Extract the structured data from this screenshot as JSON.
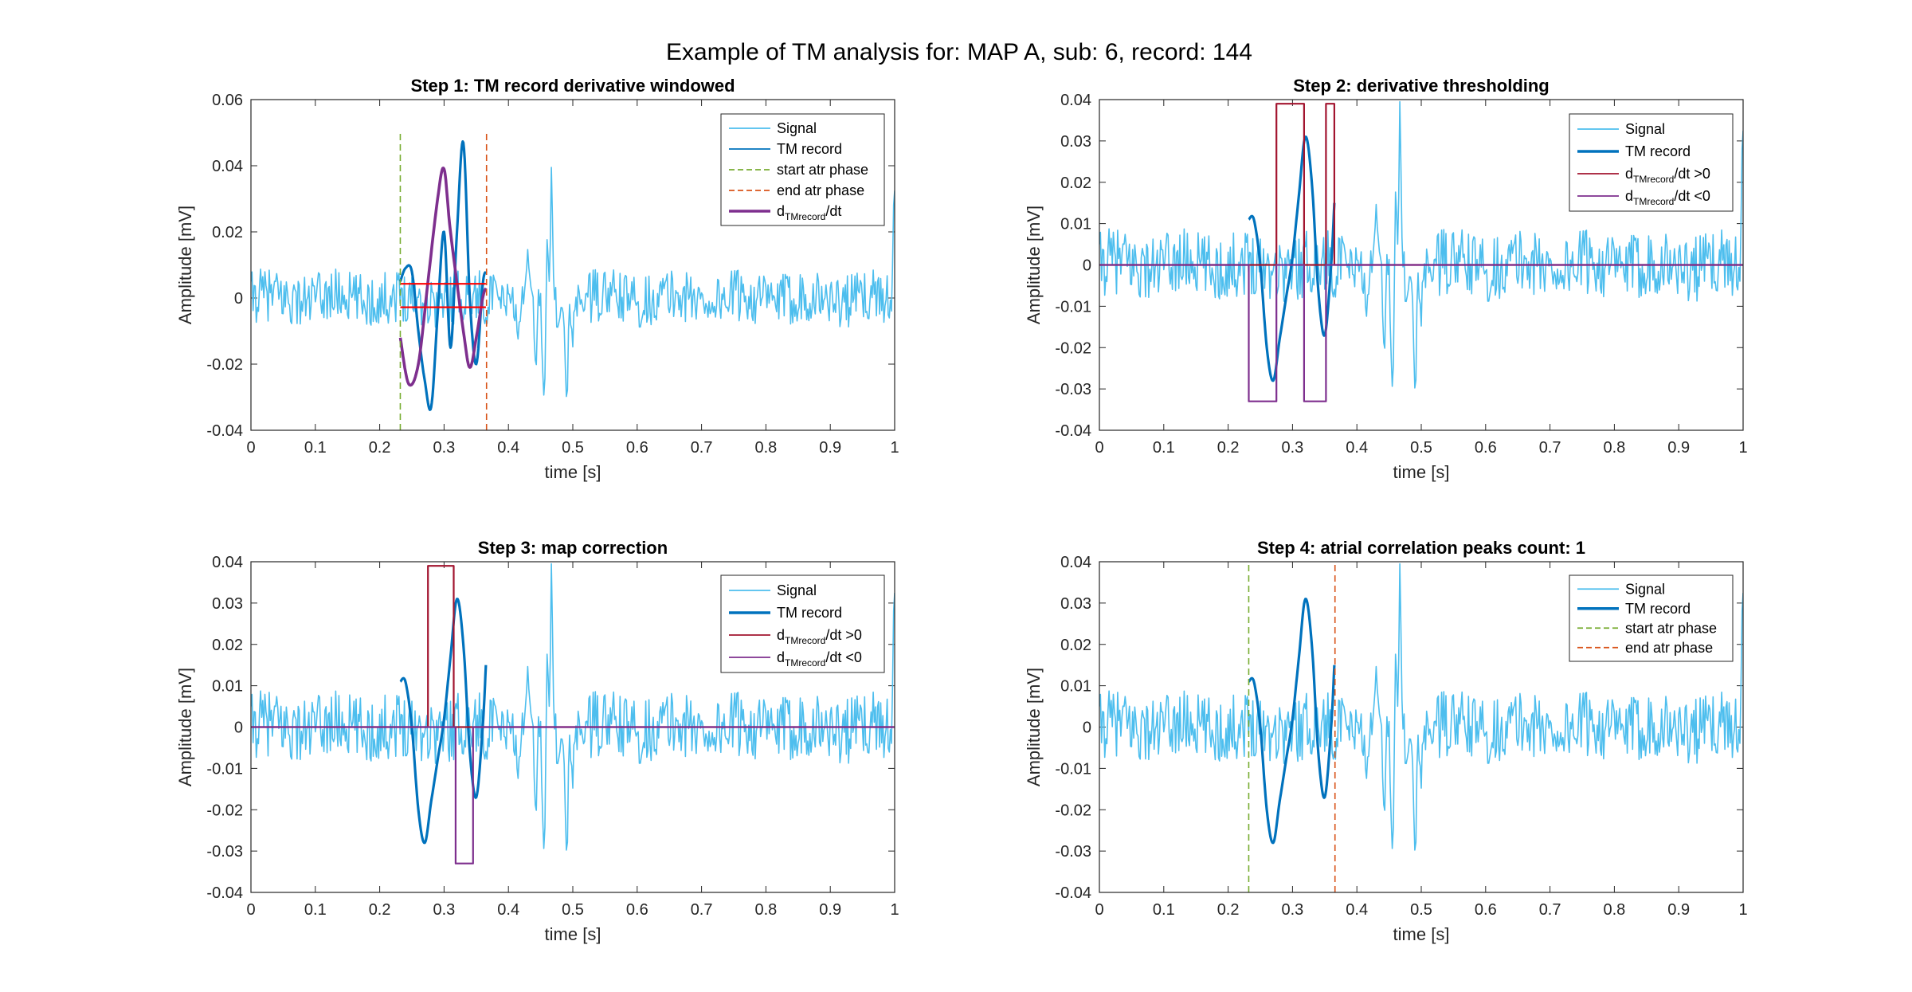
{
  "figure_title": "Example of TM analysis for: MAP A, sub: 6, record: 144",
  "colors": {
    "signal": "#4DBEEE",
    "tm": "#0072BD",
    "start": "#77AC30",
    "end": "#D95319",
    "deriv": "#7E2F8E",
    "pos": "#A2142F",
    "hline": "#FF0000",
    "axis": "#262626"
  },
  "chart_data": [
    {
      "id": "p1",
      "type": "line",
      "title": "Step 1: TM record derivative windowed",
      "xlabel": "time [s]",
      "ylabel": "Amplitude [mV]",
      "xlim": [
        0,
        1
      ],
      "ylim": [
        -0.04,
        0.06
      ],
      "xticks": [
        "0",
        "0.1",
        "0.2",
        "0.3",
        "0.4",
        "0.5",
        "0.6",
        "0.7",
        "0.8",
        "0.9",
        "1"
      ],
      "yticks": [
        "-0.04",
        "-0.02",
        "0",
        "0.02",
        "0.04",
        "0.06"
      ],
      "legend": [
        {
          "label": "Signal",
          "color": "signal",
          "style": "solid"
        },
        {
          "label": "TM record",
          "color": "tm",
          "style": "solid"
        },
        {
          "label": "start atr phase",
          "color": "start",
          "style": "dashed"
        },
        {
          "label": "end atr phase",
          "color": "end",
          "style": "dashed"
        },
        {
          "label": "d",
          "sub": "TMrecord",
          "suffix": "/dt",
          "color": "deriv",
          "style": "thick"
        }
      ],
      "series": [
        {
          "name": "Signal",
          "kind": "signal",
          "color": "signal"
        },
        {
          "name": "TM record",
          "kind": "tm",
          "color": "tm",
          "x": [
            0.232,
            0.24,
            0.25,
            0.26,
            0.27,
            0.28,
            0.29,
            0.3,
            0.31,
            0.32,
            0.33,
            0.34,
            0.35,
            0.36,
            0.365
          ],
          "y": [
            0.005,
            0.009,
            0.008,
            -0.01,
            -0.025,
            -0.033,
            -0.005,
            0.02,
            -0.015,
            0.02,
            0.047,
            0.0,
            -0.02,
            0.004,
            0.008
          ]
        },
        {
          "name": "d_TMrecord/dt",
          "kind": "line",
          "color": "deriv",
          "x": [
            0.232,
            0.245,
            0.26,
            0.275,
            0.29,
            0.3,
            0.31,
            0.33,
            0.34,
            0.35,
            0.36,
            0.365
          ],
          "y": [
            -0.012,
            -0.026,
            -0.02,
            0.005,
            0.03,
            0.039,
            0.02,
            -0.01,
            -0.021,
            -0.012,
            0.0,
            0.003
          ]
        },
        {
          "name": "upper threshold",
          "kind": "line",
          "color": "hline",
          "x": [
            0.232,
            0.365
          ],
          "y": [
            0.0043,
            0.0043
          ]
        },
        {
          "name": "lower threshold",
          "kind": "line",
          "color": "hline",
          "x": [
            0.232,
            0.365
          ],
          "y": [
            -0.0028,
            -0.0028
          ]
        },
        {
          "name": "start atr phase",
          "kind": "dashed",
          "color": "start",
          "x": [
            0.232,
            0.232
          ],
          "y": [
            -0.04,
            0.05
          ]
        },
        {
          "name": "end atr phase",
          "kind": "dashed",
          "color": "end",
          "x": [
            0.366,
            0.366
          ],
          "y": [
            -0.04,
            0.05
          ]
        }
      ]
    },
    {
      "id": "p2",
      "type": "line",
      "title": "Step 2: derivative thresholding",
      "xlabel": "time [s]",
      "ylabel": "Amplitude [mV]",
      "xlim": [
        0,
        1
      ],
      "ylim": [
        -0.04,
        0.04
      ],
      "xticks": [
        "0",
        "0.1",
        "0.2",
        "0.3",
        "0.4",
        "0.5",
        "0.6",
        "0.7",
        "0.8",
        "0.9",
        "1"
      ],
      "yticks": [
        "-0.04",
        "-0.03",
        "-0.02",
        "-0.01",
        "0",
        "0.01",
        "0.02",
        "0.03",
        "0.04"
      ],
      "legend": [
        {
          "label": "Signal",
          "color": "signal",
          "style": "solid"
        },
        {
          "label": "TM record",
          "color": "tm",
          "style": "thick"
        },
        {
          "label": "d",
          "sub": "TMrecord",
          "suffix": "/dt >0",
          "color": "pos",
          "style": "solid"
        },
        {
          "label": "d",
          "sub": "TMrecord",
          "suffix": "/dt <0",
          "color": "deriv",
          "style": "solid"
        }
      ],
      "series": [
        {
          "name": "Signal",
          "kind": "signal",
          "color": "signal"
        },
        {
          "name": "TM record",
          "kind": "tm",
          "color": "tm",
          "x": [
            0.232,
            0.24,
            0.25,
            0.26,
            0.27,
            0.28,
            0.29,
            0.3,
            0.31,
            0.32,
            0.33,
            0.34,
            0.35,
            0.36,
            0.365
          ],
          "y": [
            0.011,
            0.011,
            0.0,
            -0.02,
            -0.028,
            -0.018,
            -0.008,
            0.002,
            0.017,
            0.031,
            0.02,
            -0.006,
            -0.017,
            0.0,
            0.015
          ]
        },
        {
          "name": "d_TMrecord/dt >0",
          "kind": "line",
          "color": "pos",
          "x": [
            0,
            0.275,
            0.275,
            0.318,
            0.318,
            0.352,
            0.352,
            0.365,
            0.365,
            1
          ],
          "y": [
            0,
            0,
            0.039,
            0.039,
            0,
            0,
            0.039,
            0.039,
            0,
            0
          ]
        },
        {
          "name": "d_TMrecord/dt <0",
          "kind": "line",
          "color": "deriv",
          "x": [
            0,
            0.232,
            0.232,
            0.275,
            0.275,
            0.318,
            0.318,
            0.352,
            0.352,
            1
          ],
          "y": [
            0,
            0,
            -0.033,
            -0.033,
            0,
            0,
            -0.033,
            -0.033,
            0,
            0
          ]
        }
      ]
    },
    {
      "id": "p3",
      "type": "line",
      "title": "Step 3: map correction",
      "xlabel": "time [s]",
      "ylabel": "Amplitude [mV]",
      "xlim": [
        0,
        1
      ],
      "ylim": [
        -0.04,
        0.04
      ],
      "xticks": [
        "0",
        "0.1",
        "0.2",
        "0.3",
        "0.4",
        "0.5",
        "0.6",
        "0.7",
        "0.8",
        "0.9",
        "1"
      ],
      "yticks": [
        "-0.04",
        "-0.03",
        "-0.02",
        "-0.01",
        "0",
        "0.01",
        "0.02",
        "0.03",
        "0.04"
      ],
      "legend": [
        {
          "label": "Signal",
          "color": "signal",
          "style": "solid"
        },
        {
          "label": "TM record",
          "color": "tm",
          "style": "thick"
        },
        {
          "label": "d",
          "sub": "TMrecord",
          "suffix": "/dt >0",
          "color": "pos",
          "style": "solid"
        },
        {
          "label": "d",
          "sub": "TMrecord",
          "suffix": "/dt <0",
          "color": "deriv",
          "style": "solid"
        }
      ],
      "series": [
        {
          "name": "Signal",
          "kind": "signal",
          "color": "signal"
        },
        {
          "name": "TM record",
          "kind": "tm",
          "color": "tm",
          "x": [
            0.232,
            0.24,
            0.25,
            0.26,
            0.27,
            0.28,
            0.29,
            0.3,
            0.31,
            0.32,
            0.33,
            0.34,
            0.35,
            0.36,
            0.365
          ],
          "y": [
            0.011,
            0.011,
            0.0,
            -0.02,
            -0.028,
            -0.018,
            -0.008,
            0.002,
            0.017,
            0.031,
            0.02,
            -0.006,
            -0.017,
            0.0,
            0.015
          ]
        },
        {
          "name": "d_TMrecord/dt >0",
          "kind": "line",
          "color": "pos",
          "x": [
            0,
            0.275,
            0.275,
            0.315,
            0.315,
            1
          ],
          "y": [
            0,
            0,
            0.039,
            0.039,
            0,
            0
          ]
        },
        {
          "name": "d_TMrecord/dt <0",
          "kind": "line",
          "color": "deriv",
          "x": [
            0,
            0.318,
            0.318,
            0.345,
            0.345,
            1
          ],
          "y": [
            0,
            0,
            -0.033,
            -0.033,
            0,
            0
          ]
        }
      ]
    },
    {
      "id": "p4",
      "type": "line",
      "title": "Step 4: atrial correlation peaks count: 1",
      "xlabel": "time [s]",
      "ylabel": "Amplitude [mV]",
      "xlim": [
        0,
        1
      ],
      "ylim": [
        -0.04,
        0.04
      ],
      "xticks": [
        "0",
        "0.1",
        "0.2",
        "0.3",
        "0.4",
        "0.5",
        "0.6",
        "0.7",
        "0.8",
        "0.9",
        "1"
      ],
      "yticks": [
        "-0.04",
        "-0.03",
        "-0.02",
        "-0.01",
        "0",
        "0.01",
        "0.02",
        "0.03",
        "0.04"
      ],
      "legend": [
        {
          "label": "Signal",
          "color": "signal",
          "style": "solid"
        },
        {
          "label": "TM record",
          "color": "tm",
          "style": "thick"
        },
        {
          "label": "start atr phase",
          "color": "start",
          "style": "dashed"
        },
        {
          "label": "end atr phase",
          "color": "end",
          "style": "dashed"
        }
      ],
      "series": [
        {
          "name": "Signal",
          "kind": "signal",
          "color": "signal"
        },
        {
          "name": "TM record",
          "kind": "tm",
          "color": "tm",
          "x": [
            0.232,
            0.24,
            0.25,
            0.26,
            0.27,
            0.28,
            0.29,
            0.3,
            0.31,
            0.32,
            0.33,
            0.34,
            0.35,
            0.36,
            0.365
          ],
          "y": [
            0.011,
            0.011,
            0.0,
            -0.02,
            -0.028,
            -0.018,
            -0.008,
            0.002,
            0.017,
            0.031,
            0.02,
            -0.006,
            -0.017,
            0.0,
            0.015
          ]
        },
        {
          "name": "start atr phase",
          "kind": "dashed",
          "color": "start",
          "x": [
            0.232,
            0.232
          ],
          "y": [
            -0.04,
            0.04
          ]
        },
        {
          "name": "end atr phase",
          "kind": "dashed",
          "color": "end",
          "x": [
            0.366,
            0.366
          ],
          "y": [
            -0.04,
            0.04
          ]
        }
      ]
    }
  ]
}
